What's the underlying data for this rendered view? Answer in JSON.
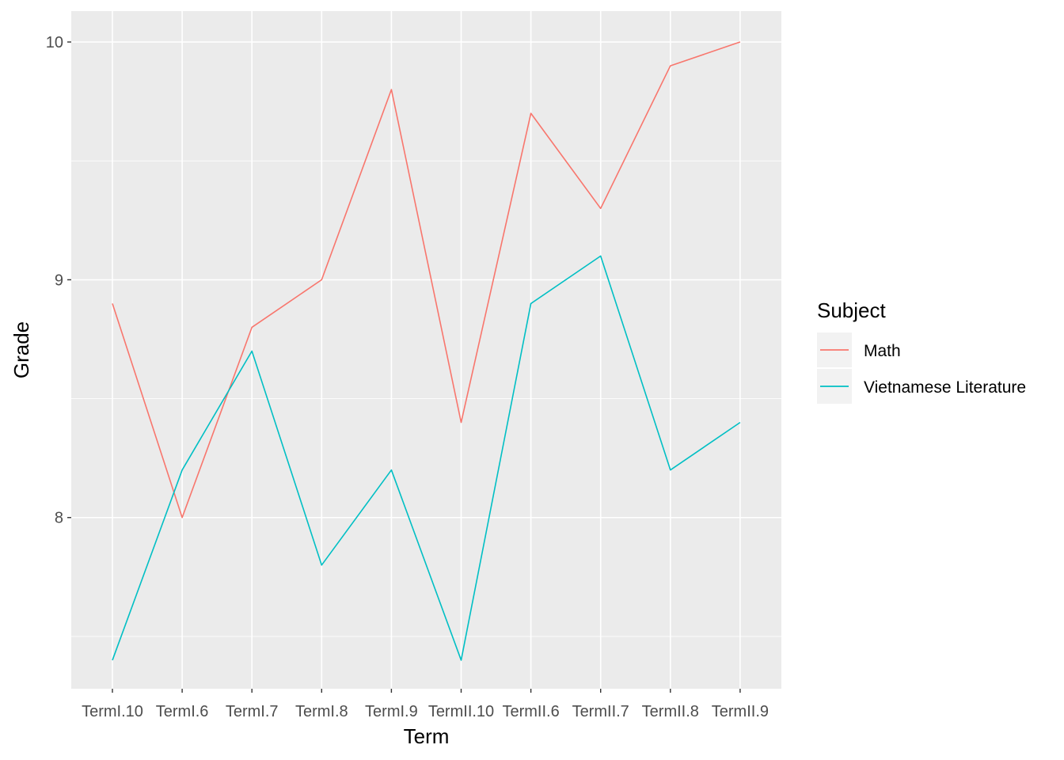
{
  "chart_data": {
    "type": "line",
    "categories": [
      "TermI.10",
      "TermI.6",
      "TermI.7",
      "TermI.8",
      "TermI.9",
      "TermII.10",
      "TermII.6",
      "TermII.7",
      "TermII.8",
      "TermII.9"
    ],
    "series": [
      {
        "name": "Math",
        "color": "#F8766D",
        "values": [
          8.9,
          8.0,
          8.8,
          9.0,
          9.8,
          8.4,
          9.7,
          9.3,
          9.9,
          10.0
        ]
      },
      {
        "name": "Vietnamese Literature",
        "color": "#00BFC4",
        "values": [
          7.4,
          8.2,
          8.7,
          7.8,
          8.2,
          7.4,
          8.9,
          9.1,
          8.2,
          8.4
        ]
      }
    ],
    "xlabel": "Term",
    "ylabel": "Grade",
    "ylim": [
      7.28,
      10.13
    ],
    "yticks": [
      8,
      9,
      10
    ],
    "ytick_labels": [
      "8",
      "9",
      "10"
    ],
    "grid": true,
    "legend": {
      "title": "Subject",
      "position": "right"
    }
  }
}
